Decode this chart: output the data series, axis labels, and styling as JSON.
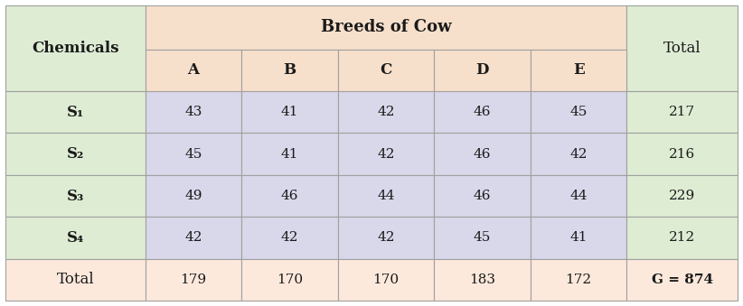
{
  "title": "Breeds of Cow",
  "col_header_breeds": [
    "A",
    "B",
    "C",
    "D",
    "E"
  ],
  "row_header_label": "Chemicals",
  "row_labels": [
    "S₁",
    "S₂",
    "S₃",
    "S₄"
  ],
  "data": [
    [
      43,
      41,
      42,
      46,
      45,
      217
    ],
    [
      45,
      41,
      42,
      46,
      42,
      216
    ],
    [
      49,
      46,
      44,
      46,
      44,
      229
    ],
    [
      42,
      42,
      42,
      45,
      41,
      212
    ]
  ],
  "col_totals": [
    179,
    170,
    170,
    183,
    172
  ],
  "grand_total": "G = 874",
  "color_header_green": "#deecd4",
  "color_header_peach": "#f7e0cb",
  "color_data_purple": "#d9d7ea",
  "color_total_row": "#fce9dc",
  "color_border": "#a0a0a0",
  "color_text_dark": "#1a1a1a",
  "font_size_header": 12,
  "font_size_data": 11,
  "font_size_title": 13
}
